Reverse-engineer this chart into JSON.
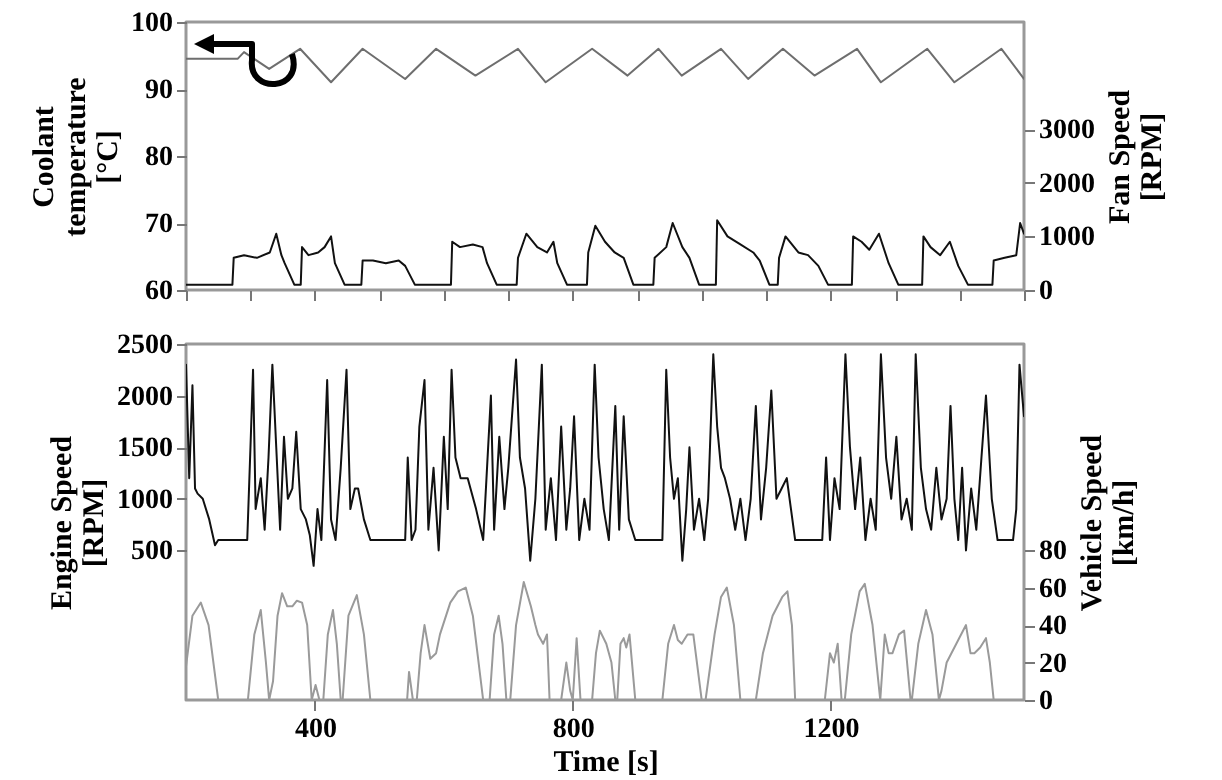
{
  "chart_data": [
    {
      "type": "line",
      "ylabel": "Coolant\ntemperature\n[°C]",
      "y2label": "Fan Speed\n[RPM]",
      "xlim": [
        200,
        1500
      ],
      "ylim": [
        60,
        100
      ],
      "yticks": [
        60,
        70,
        80,
        90,
        100
      ],
      "y2lim": [
        0,
        5000
      ],
      "y2ticks": [
        0,
        1000,
        2000,
        3000
      ],
      "tick_labels": "y",
      "series": [
        {
          "color": "#6e6e6e",
          "x": [
            200,
            280,
            290,
            329,
            377,
            425,
            474,
            540,
            588,
            649,
            715,
            758,
            830,
            885,
            933,
            969,
            1030,
            1072,
            1126,
            1175,
            1241,
            1278,
            1350,
            1392,
            1465,
            1500
          ],
          "values": [
            94.5,
            94.5,
            95.5,
            93,
            96,
            91,
            96,
            91.5,
            96,
            92,
            96,
            91,
            96,
            92,
            96,
            92,
            96,
            91.5,
            96,
            92,
            96,
            91,
            96,
            91,
            96,
            91.5
          ]
        },
        {
          "color": "#111111",
          "axis": "y2",
          "x": [
            200,
            272,
            274,
            290,
            310,
            330,
            340,
            348,
            353,
            368,
            378,
            380,
            390,
            405,
            415,
            425,
            431,
            446,
            472,
            474,
            490,
            510,
            530,
            540,
            555,
            611,
            613,
            625,
            645,
            660,
            667,
            682,
            713,
            715,
            728,
            745,
            760,
            770,
            776,
            791,
            822,
            824,
            835,
            850,
            865,
            879,
            894,
            925,
            927,
            945,
            955,
            970,
            981,
            996,
            1022,
            1024,
            1040,
            1060,
            1080,
            1090,
            1105,
            1118,
            1120,
            1130,
            1150,
            1165,
            1181,
            1196,
            1233,
            1235,
            1248,
            1260,
            1275,
            1290,
            1305,
            1342,
            1344,
            1355,
            1370,
            1385,
            1398,
            1413,
            1451,
            1453,
            1470,
            1488,
            1494,
            1500
          ],
          "values": [
            100,
            100,
            600,
            650,
            600,
            700,
            1050,
            650,
            500,
            100,
            100,
            800,
            650,
            700,
            800,
            1000,
            500,
            100,
            100,
            550,
            550,
            500,
            550,
            450,
            100,
            100,
            900,
            800,
            850,
            800,
            500,
            100,
            100,
            600,
            1050,
            800,
            700,
            900,
            500,
            100,
            100,
            700,
            1200,
            900,
            700,
            600,
            100,
            100,
            600,
            800,
            1250,
            800,
            600,
            100,
            100,
            1300,
            1000,
            850,
            700,
            550,
            100,
            100,
            600,
            1000,
            700,
            650,
            450,
            100,
            100,
            1000,
            900,
            750,
            1050,
            500,
            100,
            100,
            1000,
            800,
            650,
            900,
            450,
            100,
            100,
            550,
            600,
            650,
            1250,
            1050
          ]
        }
      ]
    },
    {
      "type": "line",
      "xlabel": "Time [s]",
      "ylabel": "Engine Speed\n[RPM]",
      "y2label": "Vehicle Speed\n[km/h]",
      "xlim": [
        200,
        1500
      ],
      "xticks": [
        400,
        800,
        1200
      ],
      "ylim": [
        -950,
        2500
      ],
      "yticks": [
        500,
        1000,
        1500,
        2000,
        2500
      ],
      "y2lim": [
        0,
        190
      ],
      "y2ticks": [
        0,
        20,
        40,
        60,
        80
      ],
      "series": [
        {
          "color": "#111111",
          "x": [
            200,
            205,
            210,
            214,
            218,
            226,
            236,
            245,
            250,
            295,
            300,
            304,
            308,
            316,
            322,
            328,
            334,
            340,
            346,
            352,
            358,
            365,
            371,
            378,
            386,
            392,
            398,
            404,
            410,
            419,
            425,
            432,
            440,
            449,
            455,
            462,
            467,
            476,
            486,
            540,
            544,
            550,
            556,
            562,
            570,
            576,
            584,
            592,
            600,
            606,
            612,
            618,
            626,
            637,
            650,
            661,
            673,
            678,
            686,
            694,
            700,
            712,
            718,
            726,
            734,
            742,
            752,
            758,
            766,
            774,
            782,
            790,
            796,
            802,
            810,
            818,
            826,
            834,
            840,
            848,
            856,
            866,
            872,
            879,
            887,
            897,
            939,
            945,
            951,
            957,
            963,
            970,
            976,
            981,
            988,
            996,
            1004,
            1010,
            1018,
            1024,
            1030,
            1036,
            1044,
            1052,
            1060,
            1068,
            1076,
            1084,
            1092,
            1100,
            1108,
            1116,
            1124,
            1132,
            1145,
            1187,
            1193,
            1199,
            1206,
            1214,
            1223,
            1230,
            1238,
            1246,
            1254,
            1262,
            1270,
            1278,
            1286,
            1294,
            1302,
            1310,
            1318,
            1326,
            1332,
            1340,
            1348,
            1356,
            1364,
            1372,
            1380,
            1386,
            1392,
            1398,
            1404,
            1410,
            1418,
            1426,
            1434,
            1441,
            1450,
            1459,
            1483,
            1488,
            1493,
            1500
          ],
          "values": [
            2300,
            1200,
            2100,
            1100,
            1050,
            1000,
            800,
            550,
            600,
            600,
            1500,
            2250,
            900,
            1200,
            700,
            1400,
            2300,
            1500,
            700,
            1600,
            1000,
            1100,
            1650,
            900,
            800,
            650,
            350,
            900,
            600,
            2150,
            800,
            600,
            1300,
            2250,
            900,
            1100,
            1100,
            800,
            600,
            600,
            1400,
            600,
            700,
            1700,
            2150,
            700,
            1300,
            500,
            1600,
            900,
            2250,
            1400,
            1200,
            1200,
            900,
            600,
            2000,
            700,
            1600,
            900,
            1300,
            2350,
            1400,
            1100,
            400,
            1000,
            2300,
            700,
            1200,
            600,
            1700,
            700,
            1100,
            1800,
            600,
            1000,
            700,
            2300,
            1400,
            900,
            600,
            1900,
            700,
            1800,
            800,
            600,
            600,
            2250,
            1400,
            1000,
            1200,
            400,
            900,
            1500,
            700,
            1000,
            600,
            1000,
            2400,
            1700,
            1300,
            1200,
            1000,
            700,
            1000,
            600,
            1000,
            1900,
            800,
            1300,
            2050,
            1000,
            1100,
            1200,
            600,
            600,
            1400,
            600,
            1200,
            900,
            2400,
            1500,
            900,
            1400,
            600,
            1000,
            700,
            2400,
            1400,
            1000,
            1600,
            800,
            1000,
            700,
            2400,
            1300,
            900,
            700,
            1300,
            800,
            1000,
            1900,
            1000,
            600,
            1300,
            500,
            1100,
            700,
            1400,
            2000,
            1000,
            600,
            600,
            900,
            2300,
            1800
          ]
        },
        {
          "color": "#9a9a9a",
          "axis": "y2",
          "x": [
            200,
            210,
            223,
            235,
            250,
            296,
            306,
            316,
            324,
            329,
            335,
            342,
            349,
            357,
            365,
            372,
            380,
            388,
            395,
            401,
            407,
            413,
            420,
            428,
            434,
            440,
            443,
            452,
            465,
            476,
            486,
            543,
            546,
            552,
            558,
            564,
            570,
            579,
            588,
            594,
            610,
            622,
            634,
            645,
            661,
            671,
            678,
            685,
            691,
            697,
            703,
            712,
            724,
            735,
            742,
            746,
            754,
            760,
            764,
            782,
            790,
            796,
            800,
            806,
            812,
            830,
            836,
            842,
            852,
            860,
            866,
            869,
            874,
            879,
            883,
            888,
            897,
            939,
            948,
            957,
            963,
            969,
            978,
            987,
            1000,
            1006,
            1020,
            1030,
            1039,
            1050,
            1060,
            1084,
            1095,
            1110,
            1125,
            1133,
            1140,
            1145,
            1191,
            1199,
            1205,
            1211,
            1217,
            1222,
            1232,
            1245,
            1253,
            1265,
            1277,
            1284,
            1290,
            1296,
            1306,
            1314,
            1324,
            1326,
            1336,
            1348,
            1358,
            1368,
            1372,
            1380,
            1395,
            1410,
            1417,
            1423,
            1432,
            1441,
            1447,
            1453,
            1500
          ],
          "values": [
            18,
            45,
            52,
            40,
            0,
            0,
            35,
            48,
            20,
            0,
            10,
            45,
            57,
            50,
            50,
            53,
            52,
            40,
            0,
            8,
            0,
            0,
            35,
            48,
            30,
            0,
            0,
            45,
            56,
            35,
            0,
            0,
            15,
            0,
            0,
            25,
            40,
            22,
            25,
            35,
            52,
            58,
            60,
            45,
            0,
            0,
            35,
            45,
            30,
            0,
            0,
            40,
            63,
            50,
            40,
            35,
            30,
            35,
            0,
            0,
            20,
            5,
            0,
            33,
            0,
            0,
            25,
            37,
            30,
            20,
            0,
            0,
            30,
            33,
            28,
            35,
            0,
            0,
            30,
            40,
            32,
            30,
            35,
            35,
            0,
            0,
            35,
            55,
            60,
            40,
            0,
            0,
            25,
            45,
            55,
            58,
            40,
            0,
            0,
            25,
            20,
            30,
            0,
            0,
            35,
            58,
            62,
            40,
            0,
            35,
            25,
            25,
            35,
            37,
            0,
            0,
            30,
            48,
            35,
            0,
            5,
            20,
            30,
            40,
            25,
            25,
            28,
            33,
            20,
            0,
            0
          ]
        }
      ]
    }
  ]
}
